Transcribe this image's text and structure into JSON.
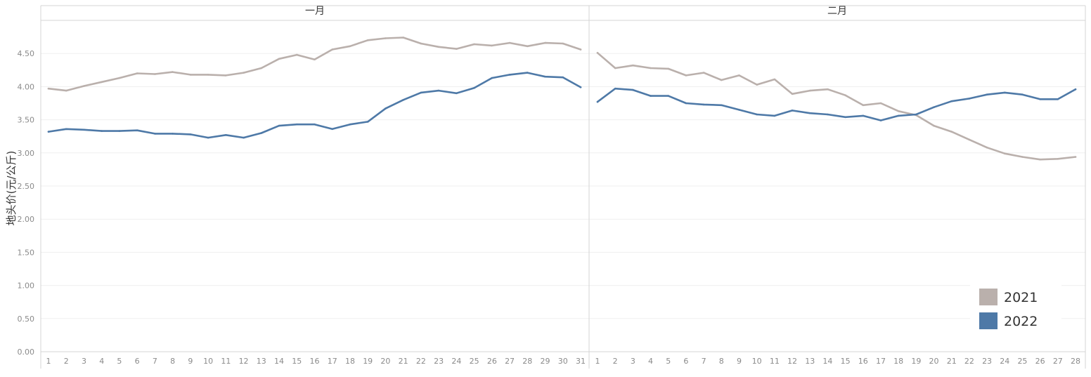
{
  "chart_data": {
    "type": "line",
    "ylabel": "地头价(元/公斤)",
    "ylim": [
      0,
      5.0
    ],
    "yticks": [
      "0.00",
      "0.50",
      "1.00",
      "1.50",
      "2.00",
      "2.50",
      "3.00",
      "3.50",
      "4.00",
      "4.50"
    ],
    "grid": true,
    "legend_position": "bottom-right",
    "legend": [
      {
        "name": "2021",
        "color": "#bab0ac"
      },
      {
        "name": "2022",
        "color": "#4e79a7"
      }
    ],
    "panels": [
      {
        "title": "一月",
        "x": [
          1,
          2,
          3,
          4,
          5,
          6,
          7,
          8,
          9,
          10,
          11,
          12,
          13,
          14,
          15,
          16,
          17,
          18,
          19,
          20,
          21,
          22,
          23,
          24,
          25,
          26,
          27,
          28,
          29,
          30,
          31
        ],
        "series": [
          {
            "name": "2021",
            "color": "#bab0ac",
            "values": [
              3.97,
              3.94,
              4.01,
              4.07,
              4.13,
              4.2,
              4.19,
              4.22,
              4.18,
              4.18,
              4.17,
              4.21,
              4.28,
              4.42,
              4.48,
              4.41,
              4.56,
              4.61,
              4.7,
              4.73,
              4.74,
              4.65,
              4.6,
              4.57,
              4.64,
              4.62,
              4.66,
              4.61,
              4.66,
              4.65,
              4.56
            ]
          },
          {
            "name": "2022",
            "color": "#4e79a7",
            "values": [
              3.32,
              3.36,
              3.35,
              3.33,
              3.33,
              3.34,
              3.29,
              3.29,
              3.28,
              3.23,
              3.27,
              3.23,
              3.3,
              3.41,
              3.43,
              3.43,
              3.36,
              3.43,
              3.47,
              3.67,
              3.8,
              3.91,
              3.94,
              3.9,
              3.98,
              4.13,
              4.18,
              4.21,
              4.15,
              4.14,
              3.99
            ]
          }
        ]
      },
      {
        "title": "二月",
        "x": [
          1,
          2,
          3,
          4,
          5,
          6,
          7,
          8,
          9,
          10,
          11,
          12,
          13,
          14,
          15,
          16,
          17,
          18,
          19,
          20,
          21,
          22,
          23,
          24,
          25,
          26,
          27,
          28
        ],
        "series": [
          {
            "name": "2021",
            "color": "#bab0ac",
            "values": [
              4.51,
              4.28,
              4.32,
              4.28,
              4.27,
              4.17,
              4.21,
              4.1,
              4.17,
              4.03,
              4.11,
              3.89,
              3.94,
              3.96,
              3.87,
              3.72,
              3.75,
              3.63,
              3.57,
              3.41,
              3.32,
              3.2,
              3.08,
              2.99,
              2.94,
              2.9,
              2.91,
              2.94
            ]
          },
          {
            "name": "2022",
            "color": "#4e79a7",
            "values": [
              3.77,
              3.97,
              3.95,
              3.86,
              3.86,
              3.75,
              3.73,
              3.72,
              3.65,
              3.58,
              3.56,
              3.64,
              3.6,
              3.58,
              3.54,
              3.56,
              3.49,
              3.56,
              3.58,
              3.69,
              3.78,
              3.82,
              3.88,
              3.91,
              3.88,
              3.81,
              3.81,
              3.96
            ]
          }
        ]
      }
    ]
  }
}
